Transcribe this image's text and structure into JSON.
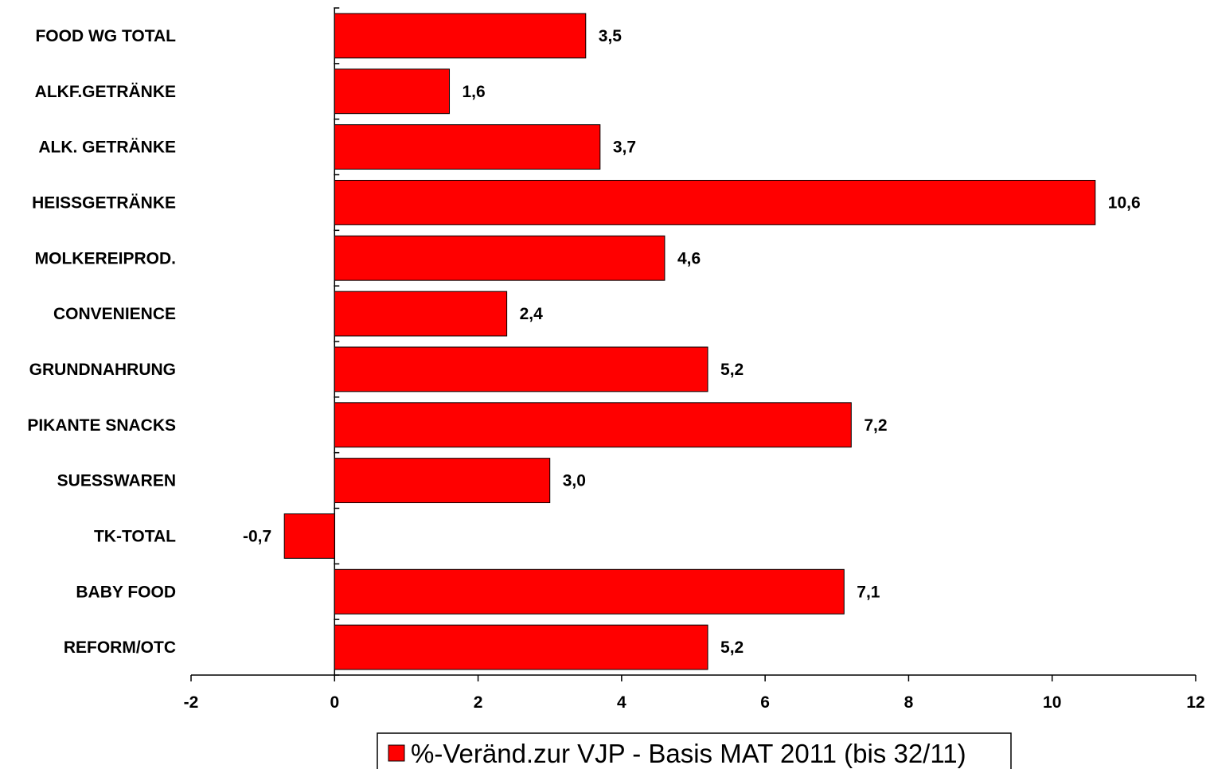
{
  "chart_data": {
    "type": "bar",
    "orientation": "horizontal",
    "categories": [
      "FOOD WG TOTAL",
      "ALKF.GETRÄNKE",
      "ALK. GETRÄNKE",
      "HEISSGETRÄNKE",
      "MOLKEREIPROD.",
      "CONVENIENCE",
      "GRUNDNAHRUNG",
      "PIKANTE SNACKS",
      "SUESSWAREN",
      "TK-TOTAL",
      "BABY FOOD",
      "REFORM/OTC"
    ],
    "series": [
      {
        "name": "%-Veränd.zur VJP - Basis MAT 2011 (bis 32/11)",
        "values": [
          3.5,
          1.6,
          3.7,
          10.6,
          4.6,
          2.4,
          5.2,
          7.2,
          3.0,
          -0.7,
          7.1,
          5.2
        ],
        "labels": [
          "3,5",
          "1,6",
          "3,7",
          "10,6",
          "4,6",
          "2,4",
          "5,2",
          "7,2",
          "3,0",
          "-0,7",
          "7,1",
          "5,2"
        ],
        "color": "#ff0000"
      }
    ],
    "xlim": [
      -2,
      12
    ],
    "xticks": [
      -2,
      0,
      2,
      4,
      6,
      8,
      10,
      12
    ],
    "grid": false,
    "legend": "bottom-center"
  }
}
